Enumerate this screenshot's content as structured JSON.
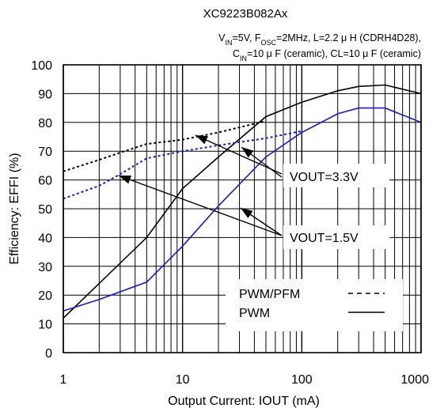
{
  "chart_data": {
    "type": "line",
    "title": "XC9223B082Ax",
    "conditions": {
      "line1": "V<sub>IN</sub>=5V, F<sub>OSC</sub>=2MHz, L=2.2 μ H (CDRH4D28),",
      "line2": "C<sub>IN</sub>=10 μ F (ceramic), CL=10 μ F (ceramic)"
    },
    "xlabel": "Output Current: IOUT (mA)",
    "ylabel": "Efficiency: EFFI (%)",
    "xscale": "log",
    "xlim": [
      1,
      1000
    ],
    "ylim": [
      0,
      100
    ],
    "x_ticks": [
      1,
      10,
      100,
      1000
    ],
    "y_ticks": [
      0,
      10,
      20,
      30,
      40,
      50,
      60,
      70,
      80,
      90,
      100
    ],
    "grid": true,
    "annotations": [
      "VOUT=3.3V",
      "VOUT=1.5V"
    ],
    "legend": [
      {
        "label": "PWM/PFM",
        "style": "dashed"
      },
      {
        "label": "PWM",
        "style": "solid"
      }
    ],
    "series": [
      {
        "vout": "3.3V",
        "mode": "PWM/PFM",
        "color": "#000000",
        "style": "dotted",
        "x": [
          1,
          2,
          3,
          5,
          10,
          20,
          50
        ],
        "y": [
          63,
          67,
          69.5,
          72.5,
          74,
          76.5,
          80.5
        ]
      },
      {
        "vout": "3.3V",
        "mode": "PWM",
        "color": "#000000",
        "style": "solid",
        "x": [
          1,
          5,
          10,
          20,
          50,
          100,
          200,
          300,
          500,
          1000
        ],
        "y": [
          12,
          40,
          57,
          68,
          82,
          87,
          91,
          92.5,
          93,
          90
        ]
      },
      {
        "vout": "1.5V",
        "mode": "PWM/PFM",
        "color": "#1a1acc",
        "style": "dotted",
        "x": [
          1,
          2,
          3,
          5,
          10,
          20,
          50,
          100
        ],
        "y": [
          53.5,
          58,
          62,
          67.5,
          70,
          72,
          74.5,
          77
        ]
      },
      {
        "vout": "1.5V",
        "mode": "PWM",
        "color": "#1a1acc",
        "style": "solid",
        "x": [
          1,
          2,
          5,
          10,
          20,
          50,
          100,
          200,
          300,
          500,
          1000
        ],
        "y": [
          14.5,
          18.5,
          24.5,
          37,
          51,
          68,
          76.5,
          83,
          85,
          85,
          80
        ]
      }
    ]
  }
}
